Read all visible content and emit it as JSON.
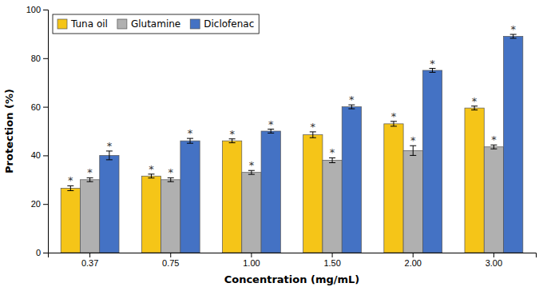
{
  "chart_data": {
    "type": "bar",
    "xlabel": "Concentration (mg/mL)",
    "ylabel": "Protection (%)",
    "categories": [
      "0.37",
      "0.75",
      "1.00",
      "1.50",
      "2.00",
      "3.00"
    ],
    "series": [
      {
        "name": "Tuna oil",
        "color": "#f5c518",
        "values": [
          26.5,
          31.5,
          46.0,
          48.5,
          53.0,
          59.5
        ],
        "errors": [
          1.0,
          0.8,
          0.8,
          1.2,
          1.0,
          0.8
        ],
        "annotations": [
          "*",
          "*",
          "*",
          "*",
          "*",
          "*"
        ]
      },
      {
        "name": "Glutamine",
        "color": "#b0b0b0",
        "values": [
          30.0,
          30.0,
          33.0,
          38.0,
          42.0,
          43.5
        ],
        "errors": [
          0.8,
          0.8,
          0.8,
          1.0,
          2.0,
          0.8
        ],
        "annotations": [
          "*",
          "*",
          "*",
          "*",
          "*",
          "*"
        ]
      },
      {
        "name": "Diclofenac",
        "color": "#4472c4",
        "values": [
          40.0,
          46.0,
          50.0,
          60.0,
          75.0,
          89.0
        ],
        "errors": [
          1.8,
          1.0,
          0.8,
          0.8,
          0.8,
          0.8
        ],
        "annotations": [
          "*",
          "*",
          "*",
          "*",
          "*",
          "*"
        ]
      }
    ],
    "ylim": [
      0,
      100
    ],
    "yticks": [
      0,
      20,
      40,
      60,
      80,
      100
    ],
    "grid": false,
    "legend": "upper left"
  }
}
